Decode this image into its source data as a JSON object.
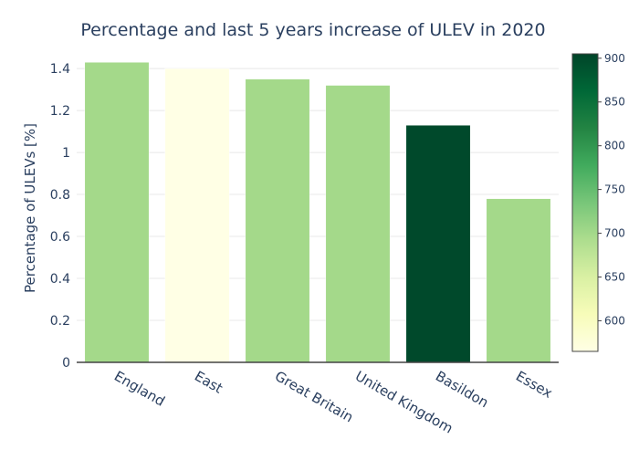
{
  "chart_data": {
    "type": "bar",
    "title": "Percentage and last 5 years increase of ULEV in 2020",
    "xlabel": "",
    "ylabel": "Percentage of ULEVs [%]",
    "categories": [
      "England",
      "East",
      "Great Britain",
      "United Kingdom",
      "Basildon",
      "Essex"
    ],
    "values": [
      1.43,
      1.4,
      1.35,
      1.32,
      1.13,
      0.78
    ],
    "color_values": [
      700,
      565,
      700,
      700,
      900,
      700
    ],
    "ylim": [
      0,
      1.47
    ],
    "yticks": [
      0,
      0.2,
      0.4,
      0.6,
      0.8,
      1,
      1.2,
      1.4
    ],
    "ytick_labels": [
      "0",
      "0.2",
      "0.4",
      "0.6",
      "0.8",
      "1",
      "1.2",
      "1.4"
    ],
    "grid": true,
    "colorbar": {
      "colorscale": "YlGn",
      "range": [
        565,
        905
      ],
      "ticks": [
        600,
        650,
        700,
        750,
        800,
        850,
        900
      ],
      "tick_labels": [
        "600",
        "650",
        "700",
        "750",
        "800",
        "850",
        "900"
      ],
      "placement": "right"
    },
    "colors": {
      "title": "#2a3f5f",
      "axis_text": "#2a3f5f",
      "grid": "#e8e8e8",
      "axis_line": "#444444",
      "bar_light": "#ffffe5",
      "bar_mid": "#b7e194",
      "bar_dark": "#00441b"
    }
  }
}
